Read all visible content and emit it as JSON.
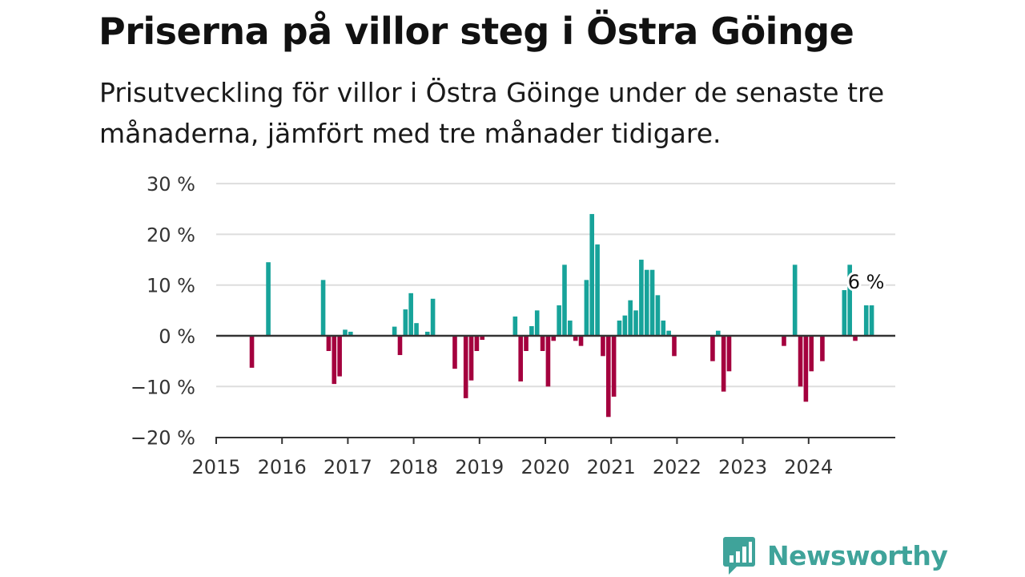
{
  "title": "Priserna på villor steg i Östra Göinge",
  "subtitle": "Prisutveckling för villor i Östra Göinge under de senaste tre månaderna, jämfört med tre månader tidigare.",
  "brand": {
    "name": "Newsworthy",
    "color": "#3fa39a",
    "icon": "newsworthy-logo-icon"
  },
  "colors": {
    "positive": "#17a39a",
    "negative": "#a4003e",
    "grid": "#dddddd",
    "baseline": "#333333"
  },
  "chart_data": {
    "type": "bar",
    "x_unit": "month",
    "y_unit": "%",
    "ylim": [
      -20,
      30
    ],
    "yticks": [
      30,
      20,
      10,
      0,
      -10,
      -20
    ],
    "ytick_labels": [
      "30 %",
      "20 %",
      "10 %",
      "0 %",
      "−10 %",
      "−20 %"
    ],
    "xticks": [
      "2015-01",
      "2016-01",
      "2017-01",
      "2018-01",
      "2019-01",
      "2020-01",
      "2021-01",
      "2022-01",
      "2023-01",
      "2024-01"
    ],
    "xtick_labels": [
      "2015",
      "2016",
      "2017",
      "2018",
      "2019",
      "2020",
      "2021",
      "2022",
      "2023",
      "2024"
    ],
    "grid": true,
    "annotation": {
      "x": "2024-12",
      "value": 6,
      "label": "6 %"
    },
    "series": [
      {
        "values": [
          {
            "x": "2015-07",
            "value": -6.3
          },
          {
            "x": "2015-10",
            "value": 14.5
          },
          {
            "x": "2016-08",
            "value": 11.0
          },
          {
            "x": "2016-09",
            "value": -3.0
          },
          {
            "x": "2016-10",
            "value": -9.5
          },
          {
            "x": "2016-11",
            "value": -8.0
          },
          {
            "x": "2016-12",
            "value": 1.2
          },
          {
            "x": "2017-01",
            "value": 0.8
          },
          {
            "x": "2017-09",
            "value": 1.8
          },
          {
            "x": "2017-10",
            "value": -3.8
          },
          {
            "x": "2017-11",
            "value": 5.2
          },
          {
            "x": "2017-12",
            "value": 8.4
          },
          {
            "x": "2018-01",
            "value": 2.5
          },
          {
            "x": "2018-03",
            "value": 0.8
          },
          {
            "x": "2018-04",
            "value": 7.3
          },
          {
            "x": "2018-08",
            "value": -6.5
          },
          {
            "x": "2018-10",
            "value": -12.3
          },
          {
            "x": "2018-11",
            "value": -8.8
          },
          {
            "x": "2018-12",
            "value": -3.0
          },
          {
            "x": "2019-01",
            "value": -0.8
          },
          {
            "x": "2019-07",
            "value": 3.8
          },
          {
            "x": "2019-08",
            "value": -9.0
          },
          {
            "x": "2019-09",
            "value": -3.0
          },
          {
            "x": "2019-10",
            "value": 1.9
          },
          {
            "x": "2019-11",
            "value": 5.0
          },
          {
            "x": "2019-12",
            "value": -3.0
          },
          {
            "x": "2020-01",
            "value": -10.0
          },
          {
            "x": "2020-02",
            "value": -1.0
          },
          {
            "x": "2020-03",
            "value": 6.0
          },
          {
            "x": "2020-04",
            "value": 14.0
          },
          {
            "x": "2020-05",
            "value": 3.0
          },
          {
            "x": "2020-06",
            "value": -1.0
          },
          {
            "x": "2020-07",
            "value": -2.0
          },
          {
            "x": "2020-08",
            "value": 11.0
          },
          {
            "x": "2020-09",
            "value": 24.0
          },
          {
            "x": "2020-10",
            "value": 18.0
          },
          {
            "x": "2020-11",
            "value": -4.0
          },
          {
            "x": "2020-12",
            "value": -16.0
          },
          {
            "x": "2021-01",
            "value": -12.0
          },
          {
            "x": "2021-02",
            "value": 3.0
          },
          {
            "x": "2021-03",
            "value": 4.0
          },
          {
            "x": "2021-04",
            "value": 7.0
          },
          {
            "x": "2021-05",
            "value": 5.0
          },
          {
            "x": "2021-06",
            "value": 15.0
          },
          {
            "x": "2021-07",
            "value": 13.0
          },
          {
            "x": "2021-08",
            "value": 13.0
          },
          {
            "x": "2021-09",
            "value": 8.0
          },
          {
            "x": "2021-10",
            "value": 3.0
          },
          {
            "x": "2021-11",
            "value": 1.0
          },
          {
            "x": "2021-12",
            "value": -4.0
          },
          {
            "x": "2022-07",
            "value": -5.0
          },
          {
            "x": "2022-08",
            "value": 1.0
          },
          {
            "x": "2022-09",
            "value": -11.0
          },
          {
            "x": "2022-10",
            "value": -7.0
          },
          {
            "x": "2023-08",
            "value": -2.0
          },
          {
            "x": "2023-10",
            "value": 14.0
          },
          {
            "x": "2023-11",
            "value": -10.0
          },
          {
            "x": "2023-12",
            "value": -13.0
          },
          {
            "x": "2024-01",
            "value": -7.0
          },
          {
            "x": "2024-03",
            "value": -5.0
          },
          {
            "x": "2024-07",
            "value": 9.0
          },
          {
            "x": "2024-08",
            "value": 14.0
          },
          {
            "x": "2024-09",
            "value": -1.0
          },
          {
            "x": "2024-11",
            "value": 6.0
          },
          {
            "x": "2024-12",
            "value": 6.0
          }
        ]
      }
    ]
  }
}
